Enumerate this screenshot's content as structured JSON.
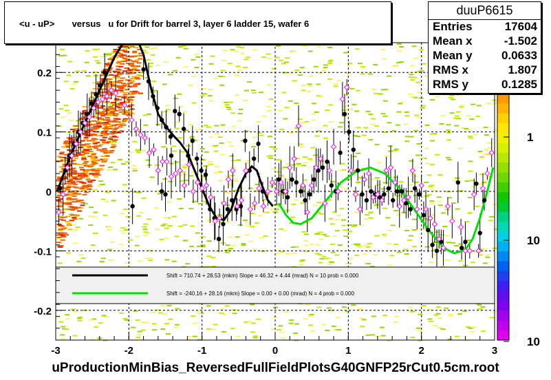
{
  "title": "<u - uP>       versus   u for Drift for barrel 3, layer 6 ladder 15, wafer 6",
  "stats": {
    "name": "duuP6615",
    "entries_label": "Entries",
    "entries": "17604",
    "meanx_label": "Mean x",
    "meanx": "-1.502",
    "meany_label": "Mean y",
    "meany": "0.0633",
    "rmsx_label": "RMS x",
    "rmsx": "1.807",
    "rmsy_label": "RMS y",
    "rmsy": "0.1285"
  },
  "x_title": "uProductionMinBias_ReversedFullFieldPlotsG40GNFP25rCut0.5cm.root",
  "legend": {
    "line1": "Shift =    710.74 + 28.53 (mkm) Slope =    46.32 + 4.44 (mrad)  N = 10 prob = 0.000",
    "line2": "Shift =  -240.16 + 28.16 (mkm) Slope =    0.00 + 0.00 (mrad)  N = 4 prob = 0.000"
  },
  "colorbar": {
    "tick_labels": [
      "1",
      "10",
      "10"
    ]
  },
  "chart_data": {
    "type": "scatter",
    "title": "<u - uP>       versus   u for Drift for barrel 3, layer 6 ladder 15, wafer 6",
    "xlim": [
      -3,
      3
    ],
    "ylim": [
      -0.25,
      0.25
    ],
    "x_ticks": [
      "-3",
      "-2",
      "-1",
      "0",
      "1",
      "2",
      "3"
    ],
    "y_ticks": [
      "-0.2",
      "-0.1",
      "0",
      "0.1",
      "0.2"
    ],
    "grid": true,
    "colors": {
      "black_fit": "#000000",
      "green_fit": "#00e000",
      "open_marker": "#ff00ff"
    },
    "series": [
      {
        "marker": "filled-circle",
        "color": "#000000",
        "points": [
          [
            -2.94,
            0.005
          ],
          [
            -2.87,
            0.035
          ],
          [
            -2.81,
            0.06
          ],
          [
            -2.75,
            0.08
          ],
          [
            -2.69,
            0.1
          ],
          [
            -2.63,
            0.115
          ],
          [
            -2.57,
            0.13
          ],
          [
            -2.51,
            0.148
          ],
          [
            -2.45,
            0.163
          ],
          [
            -2.39,
            0.178
          ],
          [
            -2.33,
            0.2
          ],
          [
            -1.8,
            0.205
          ],
          [
            -1.73,
            0.185
          ],
          [
            -1.67,
            0.16
          ],
          [
            -1.61,
            0.14
          ],
          [
            -1.55,
            0.12
          ],
          [
            -1.49,
            0.108
          ],
          [
            -1.43,
            0.092
          ],
          [
            -1.37,
            0.135
          ],
          [
            -1.31,
            0.13
          ],
          [
            -1.25,
            0.105
          ],
          [
            -1.19,
            0.06
          ],
          [
            -1.13,
            0.085
          ],
          [
            -1.07,
            0.055
          ],
          [
            -1.01,
            0.035
          ],
          [
            -0.95,
            0.028
          ],
          [
            -0.89,
            -0.03
          ],
          [
            -0.83,
            -0.045
          ],
          [
            -0.77,
            -0.08
          ],
          [
            -0.71,
            -0.055
          ],
          [
            -0.65,
            -0.03
          ],
          [
            -0.59,
            -0.015
          ],
          [
            -0.53,
            -0.03
          ],
          [
            -0.47,
            -0.025
          ],
          [
            -0.41,
            0.085
          ],
          [
            -0.35,
            0.035
          ],
          [
            -0.29,
            0.055
          ],
          [
            -0.23,
            0.08
          ],
          [
            -0.17,
            0.0
          ],
          [
            -1.95,
            -0.025
          ],
          [
            -1.55,
            0.0
          ],
          [
            -1.5,
            -0.005
          ],
          [
            -1.42,
            0.06
          ],
          [
            0.05,
            0.02
          ],
          [
            0.11,
            0.0
          ],
          [
            0.17,
            -0.01
          ],
          [
            0.23,
            0.02
          ],
          [
            0.29,
            0.015
          ],
          [
            0.35,
            0.0
          ],
          [
            0.41,
            -0.015
          ],
          [
            0.47,
            -0.005
          ],
          [
            0.53,
            0.02
          ],
          [
            0.59,
            0.035
          ],
          [
            0.65,
            0.04
          ],
          [
            0.71,
            0.05
          ],
          [
            0.77,
            0.01
          ],
          [
            0.83,
            0.0
          ],
          [
            0.89,
            0.065
          ],
          [
            0.95,
            0.13
          ],
          [
            1.01,
            0.1
          ],
          [
            1.07,
            0.07
          ],
          [
            1.13,
            0.035
          ],
          [
            1.19,
            -0.005
          ],
          [
            1.25,
            -0.015
          ],
          [
            1.31,
            0.0
          ],
          [
            1.37,
            -0.005
          ],
          [
            1.43,
            -0.01
          ],
          [
            1.49,
            -0.005
          ],
          [
            1.55,
            0.005
          ],
          [
            1.61,
            -0.015
          ],
          [
            1.67,
            0.0
          ],
          [
            1.73,
            0.0
          ],
          [
            1.79,
            -0.02
          ],
          [
            1.85,
            -0.03
          ],
          [
            1.91,
            0.005
          ],
          [
            1.97,
            -0.005
          ],
          [
            2.03,
            -0.04
          ],
          [
            2.09,
            -0.065
          ],
          [
            2.15,
            -0.09
          ],
          [
            2.21,
            -0.1
          ],
          [
            2.27,
            -0.085
          ],
          [
            2.5,
            0.015
          ],
          [
            2.55,
            -0.095
          ],
          [
            2.6,
            -0.085
          ],
          [
            2.75,
            0.013
          ],
          [
            2.8,
            -0.07
          ],
          [
            2.86,
            -0.015
          ]
        ]
      },
      {
        "marker": "open-diamond",
        "color": "#ff00ff",
        "points": [
          [
            -2.96,
            -0.035
          ],
          [
            -2.9,
            -0.005
          ],
          [
            -2.84,
            0.04
          ],
          [
            -2.78,
            0.06
          ],
          [
            -2.72,
            0.08
          ],
          [
            -2.66,
            0.1
          ],
          [
            -2.6,
            0.115
          ],
          [
            -2.54,
            0.125
          ],
          [
            -2.48,
            0.14
          ],
          [
            -2.42,
            0.15
          ],
          [
            -2.36,
            0.155
          ],
          [
            -2.3,
            0.16
          ],
          [
            -2.24,
            0.17
          ],
          [
            -2.18,
            0.165
          ],
          [
            -2.06,
            0.145
          ],
          [
            -1.96,
            0.12
          ],
          [
            -1.9,
            0.105
          ],
          [
            -1.84,
            0.095
          ],
          [
            -1.78,
            0.09
          ],
          [
            -1.72,
            0.065
          ],
          [
            -1.66,
            0.07
          ],
          [
            -1.6,
            0.035
          ],
          [
            -1.54,
            0.05
          ],
          [
            -1.48,
            0.05
          ],
          [
            -1.42,
            0.025
          ],
          [
            -1.36,
            0.03
          ],
          [
            -1.3,
            0.035
          ],
          [
            -1.24,
            0.01
          ],
          [
            -1.18,
            0.045
          ],
          [
            -1.12,
            0.0
          ],
          [
            -1.06,
            0.015
          ],
          [
            -1.0,
            0.005
          ],
          [
            -0.94,
            0.01
          ],
          [
            -0.88,
            -0.01
          ],
          [
            -0.82,
            -0.05
          ],
          [
            -0.76,
            -0.045
          ],
          [
            -0.7,
            -0.02
          ],
          [
            -0.64,
            0.02
          ],
          [
            -0.58,
            0.035
          ],
          [
            -0.52,
            -0.025
          ],
          [
            -0.46,
            -0.015
          ],
          [
            -0.4,
            0.035
          ],
          [
            -0.34,
            -0.03
          ],
          [
            -0.28,
            -0.02
          ],
          [
            -0.22,
            0.005
          ],
          [
            -0.16,
            -0.025
          ],
          [
            -0.1,
            0.0
          ],
          [
            -0.04,
            0.015
          ],
          [
            0.02,
            0.0
          ],
          [
            0.08,
            0.015
          ],
          [
            0.14,
            0.0
          ],
          [
            0.2,
            0.04
          ],
          [
            0.26,
            0.055
          ],
          [
            0.32,
            0.11
          ],
          [
            0.38,
            0.01
          ],
          [
            0.44,
            -0.035
          ],
          [
            0.5,
            0.01
          ],
          [
            0.56,
            0.04
          ],
          [
            0.62,
            0.055
          ],
          [
            0.68,
            -0.02
          ],
          [
            0.74,
            0.035
          ],
          [
            0.8,
            0.075
          ],
          [
            0.86,
            0.0
          ],
          [
            0.92,
            0.155
          ],
          [
            0.98,
            0.175
          ],
          [
            1.04,
            0.035
          ],
          [
            1.1,
            -0.005
          ],
          [
            1.16,
            -0.03
          ],
          [
            1.22,
            0.02
          ],
          [
            1.28,
            0.03
          ],
          [
            1.34,
            -0.01
          ],
          [
            1.4,
            -0.005
          ],
          [
            1.46,
            -0.015
          ],
          [
            1.52,
            0.035
          ],
          [
            1.58,
            0.04
          ],
          [
            1.64,
            0.015
          ],
          [
            1.7,
            -0.025
          ],
          [
            1.76,
            -0.015
          ],
          [
            1.82,
            -0.01
          ],
          [
            1.88,
            0.035
          ],
          [
            1.94,
            -0.03
          ],
          [
            2.0,
            0.01
          ],
          [
            2.06,
            -0.03
          ],
          [
            2.12,
            -0.045
          ],
          [
            2.18,
            -0.055
          ],
          [
            2.24,
            -0.08
          ],
          [
            2.3,
            -0.095
          ],
          [
            2.36,
            -0.025
          ],
          [
            2.42,
            -0.05
          ],
          [
            2.54,
            -0.06
          ],
          [
            2.6,
            -0.1
          ],
          [
            2.66,
            -0.1
          ],
          [
            2.72,
            -0.005
          ],
          [
            2.78,
            -0.1
          ],
          [
            2.84,
            0.005
          ],
          [
            2.9,
            0.03
          ],
          [
            2.96,
            0.065
          ]
        ]
      }
    ]
  }
}
